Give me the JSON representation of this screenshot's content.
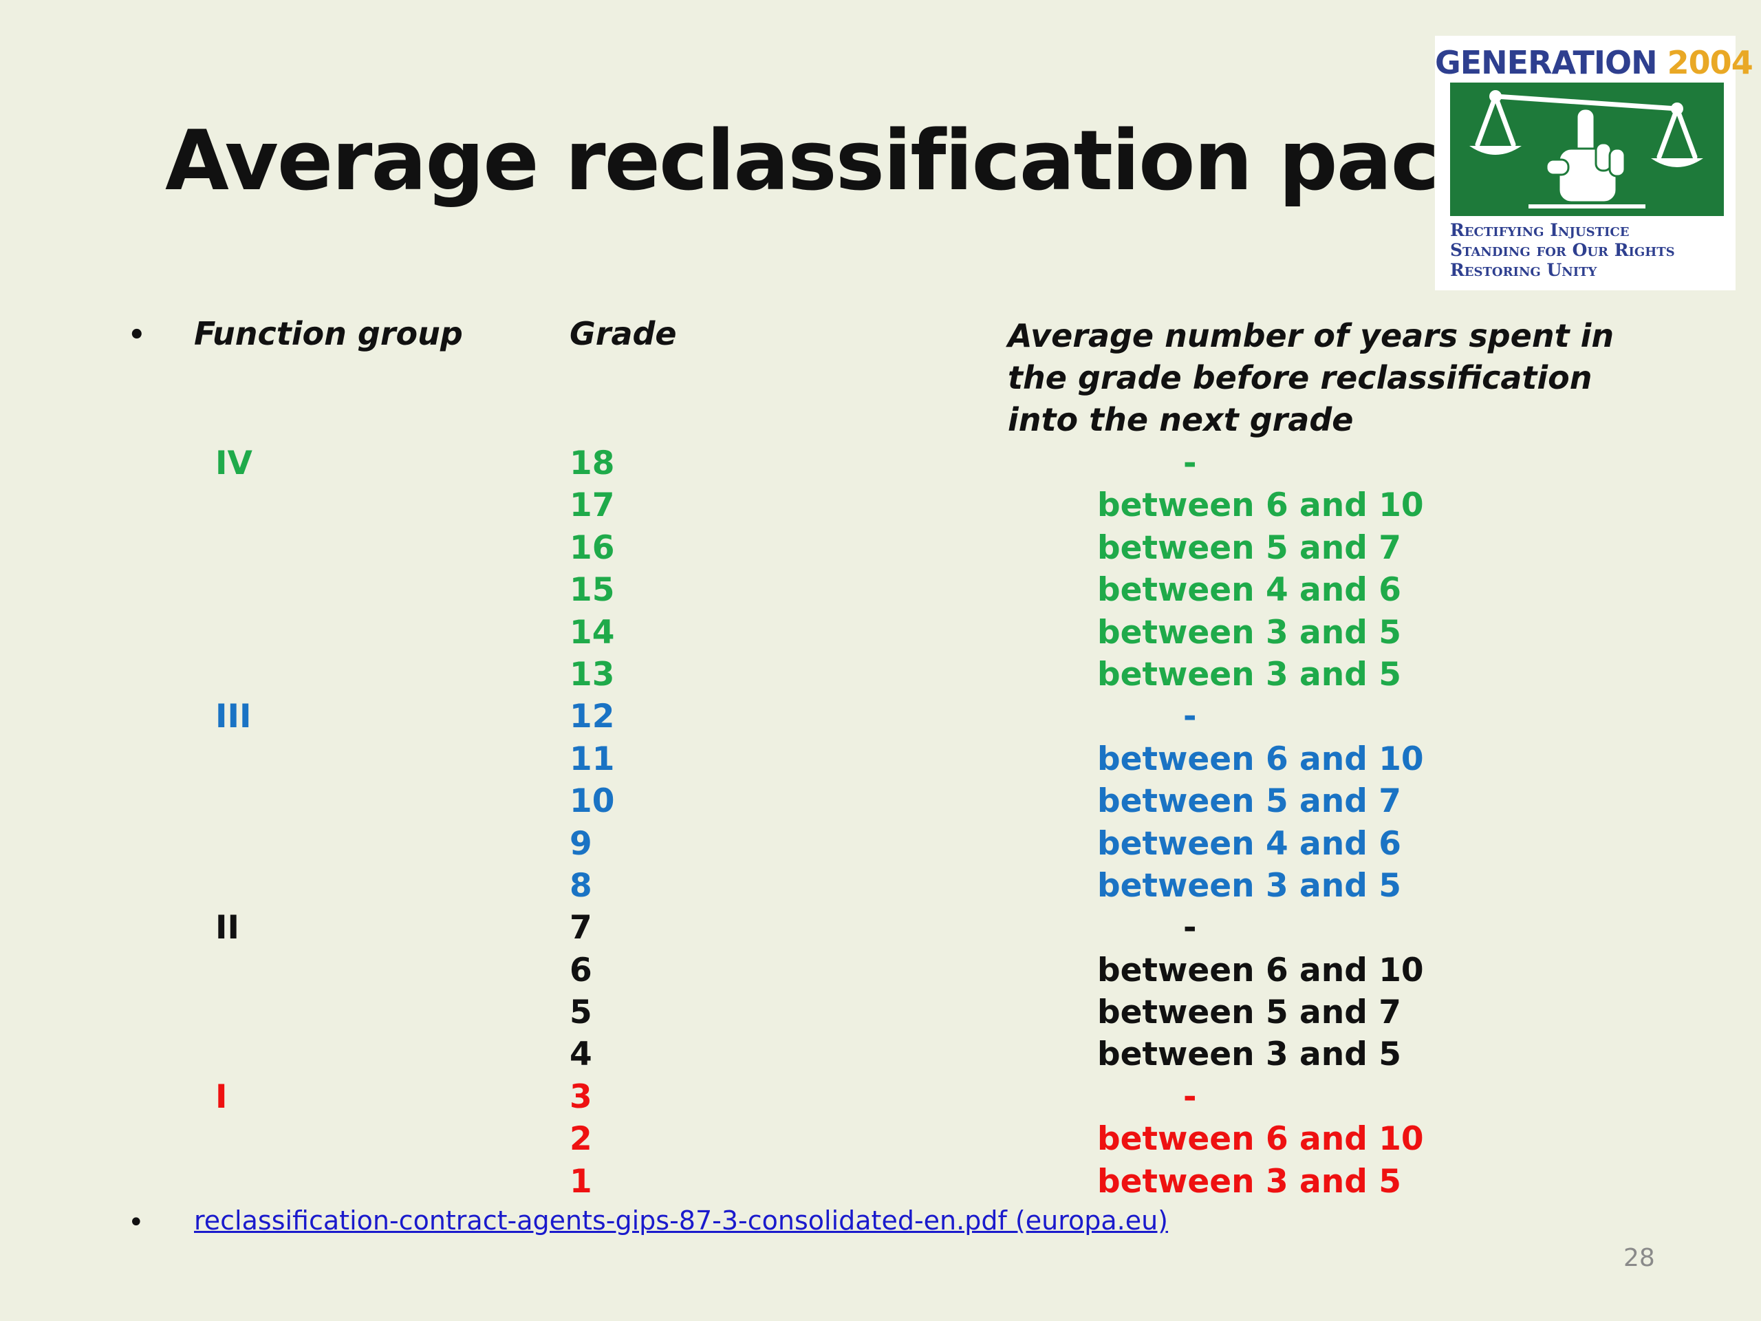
{
  "slide": {
    "title": "Average reclassification pace",
    "page_number": "28"
  },
  "logo": {
    "word": "GENERATION",
    "year": "2004",
    "lines": [
      "Rectifying Injustice",
      "Standing for Our Rights",
      "Restoring Unity"
    ]
  },
  "table_header": {
    "function_group": "Function group",
    "grade": "Grade",
    "average_years": "Average number of years spent in the grade before reclassification into the next grade"
  },
  "rows": [
    {
      "function_group": "IV",
      "grade": "18",
      "years": "-",
      "color": "#1faa4a"
    },
    {
      "function_group": "",
      "grade": "17",
      "years": "between 6 and 10",
      "color": "#1faa4a"
    },
    {
      "function_group": "",
      "grade": "16",
      "years": "between 5 and 7",
      "color": "#1faa4a"
    },
    {
      "function_group": "",
      "grade": "15",
      "years": "between 4 and 6",
      "color": "#1faa4a"
    },
    {
      "function_group": "",
      "grade": "14",
      "years": "between 3 and 5",
      "color": "#1faa4a"
    },
    {
      "function_group": "",
      "grade": "13",
      "years": "between 3 and 5",
      "color": "#1faa4a"
    },
    {
      "function_group": "III",
      "grade": "12",
      "years": "-",
      "color": "#1a73c4"
    },
    {
      "function_group": "",
      "grade": "11",
      "years": "between 6 and 10",
      "color": "#1a73c4"
    },
    {
      "function_group": "",
      "grade": "10",
      "years": "between 5 and 7",
      "color": "#1a73c4"
    },
    {
      "function_group": "",
      "grade": "9",
      "years": "between 4 and 6",
      "color": "#1a73c4"
    },
    {
      "function_group": "",
      "grade": "8",
      "years": "between 3 and 5",
      "color": "#1a73c4"
    },
    {
      "function_group": "II",
      "grade": "7",
      "years": "-",
      "color": "#111111"
    },
    {
      "function_group": "",
      "grade": "6",
      "years": "between 6 and 10",
      "color": "#111111"
    },
    {
      "function_group": "",
      "grade": "5",
      "years": "between 5 and 7",
      "color": "#111111"
    },
    {
      "function_group": "",
      "grade": "4",
      "years": "between 3 and 5",
      "color": "#111111"
    },
    {
      "function_group": "I",
      "grade": "3",
      "years": "-",
      "color": "#ee1111"
    },
    {
      "function_group": "",
      "grade": "2",
      "years": "between 6 and 10",
      "color": "#ee1111"
    },
    {
      "function_group": "",
      "grade": "1",
      "years": "between 3 and 5",
      "color": "#ee1111"
    }
  ],
  "source": {
    "link_text": "reclassification-contract-agents-gips-87-3-consolidated-en.pdf (europa.eu)"
  },
  "icons": {
    "bullet": "bullet-dot-icon",
    "logo_emblem": "scales-hand-icon"
  }
}
